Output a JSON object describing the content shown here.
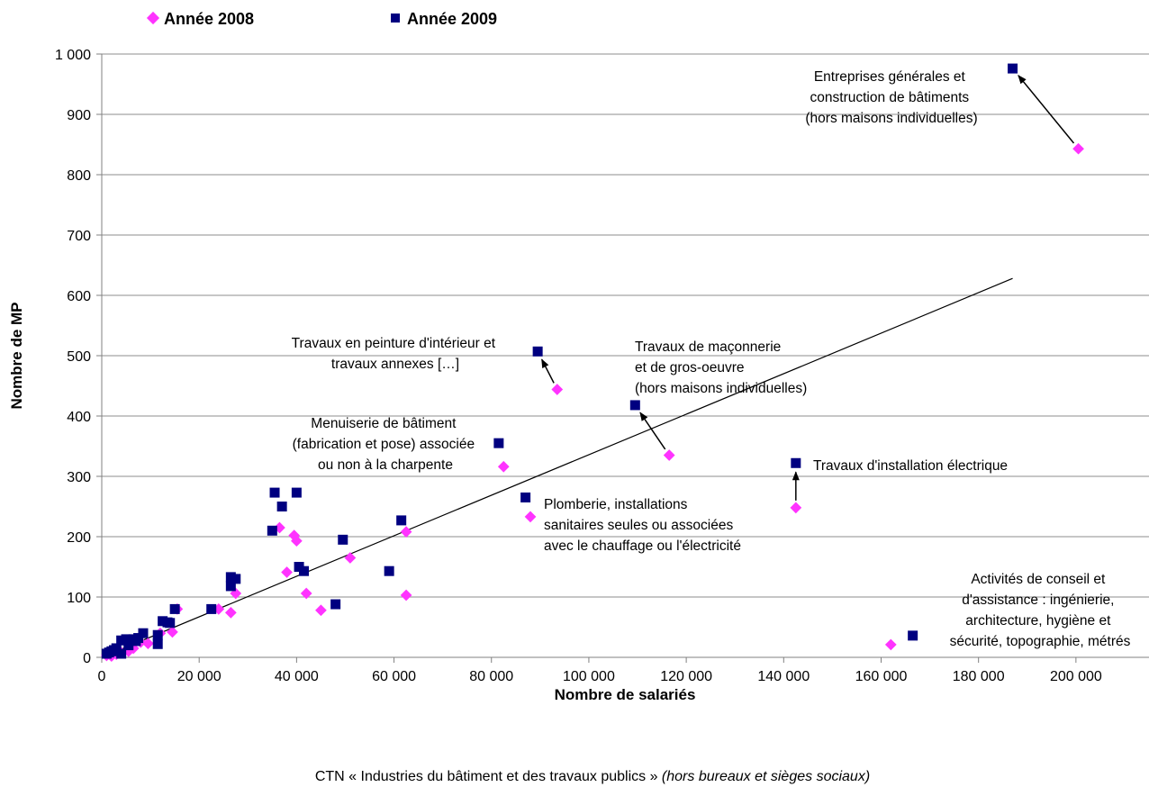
{
  "chart_data": {
    "type": "scatter",
    "title": "",
    "xlabel": "Nombre de salariés",
    "ylabel": "Nombre de MP",
    "xlim": [
      0,
      215000
    ],
    "ylim": [
      0,
      1000
    ],
    "x_ticks": [
      0,
      20000,
      40000,
      60000,
      80000,
      100000,
      120000,
      140000,
      160000,
      180000,
      200000
    ],
    "y_ticks": [
      0,
      100,
      200,
      300,
      400,
      500,
      600,
      700,
      800,
      900,
      1000
    ],
    "grid": "horizontal",
    "legend_position": "top-left",
    "series": [
      {
        "name": "Année 2008",
        "marker": "diamond",
        "color": "#FF33FF",
        "points": [
          [
            200500,
            843
          ],
          [
            93500,
            444
          ],
          [
            116500,
            335
          ],
          [
            142500,
            248
          ],
          [
            82500,
            316
          ],
          [
            88000,
            233
          ],
          [
            162000,
            21
          ],
          [
            36500,
            215
          ],
          [
            39500,
            202
          ],
          [
            40000,
            193
          ],
          [
            38000,
            141
          ],
          [
            42000,
            106
          ],
          [
            45000,
            78
          ],
          [
            51000,
            165
          ],
          [
            62500,
            208
          ],
          [
            62500,
            103
          ],
          [
            27500,
            106
          ],
          [
            26500,
            74
          ],
          [
            24000,
            80
          ],
          [
            15500,
            80
          ],
          [
            14500,
            42
          ],
          [
            12000,
            40
          ],
          [
            9500,
            23
          ],
          [
            8000,
            25
          ],
          [
            5500,
            10
          ],
          [
            4000,
            8
          ],
          [
            3000,
            5
          ],
          [
            2000,
            2
          ],
          [
            1000,
            3
          ],
          [
            6500,
            15
          ]
        ]
      },
      {
        "name": "Année 2009",
        "marker": "square",
        "color": "#000080",
        "points": [
          [
            187000,
            976
          ],
          [
            89500,
            507
          ],
          [
            109500,
            418
          ],
          [
            142500,
            322
          ],
          [
            81500,
            355
          ],
          [
            87000,
            265
          ],
          [
            166500,
            36
          ],
          [
            35500,
            273
          ],
          [
            40000,
            273
          ],
          [
            37000,
            250
          ],
          [
            35000,
            210
          ],
          [
            49500,
            195
          ],
          [
            61500,
            227
          ],
          [
            40500,
            150
          ],
          [
            41500,
            143
          ],
          [
            48000,
            88
          ],
          [
            59000,
            143
          ],
          [
            26500,
            133
          ],
          [
            27500,
            130
          ],
          [
            26500,
            118
          ],
          [
            22500,
            80
          ],
          [
            15000,
            80
          ],
          [
            13500,
            58
          ],
          [
            12500,
            60
          ],
          [
            14000,
            57
          ],
          [
            11500,
            37
          ],
          [
            11500,
            22
          ],
          [
            8500,
            40
          ],
          [
            7500,
            32
          ],
          [
            6500,
            30
          ],
          [
            5000,
            30
          ],
          [
            4000,
            28
          ],
          [
            3000,
            15
          ],
          [
            2500,
            12
          ],
          [
            2000,
            10
          ],
          [
            1500,
            8
          ],
          [
            1000,
            6
          ],
          [
            4000,
            6
          ],
          [
            7000,
            27
          ],
          [
            5500,
            20
          ]
        ]
      }
    ],
    "trendline": {
      "from": [
        0,
        0
      ],
      "to": [
        187000,
        628
      ]
    },
    "annotations": [
      {
        "lines": [
          "Entreprises générales et",
          "construction de bâtiments",
          "(hors maisons individuelles)"
        ],
        "arrow_from": [
          200500,
          843
        ],
        "arrow_to": [
          187000,
          976
        ]
      },
      {
        "lines": [
          "Travaux en peinture d'intérieur et",
          "travaux annexes […]"
        ],
        "arrow_from": [
          93500,
          444
        ],
        "arrow_to": [
          89500,
          507
        ]
      },
      {
        "lines": [
          "Travaux de maçonnerie",
          "et de gros-oeuvre",
          "(hors maisons individuelles)"
        ],
        "arrow_from": [
          116500,
          335
        ],
        "arrow_to": [
          109500,
          418
        ]
      },
      {
        "lines": [
          "Menuiserie de bâtiment",
          "(fabrication et pose) associée",
          "ou non à la charpente"
        ],
        "arrow_from": null,
        "arrow_to": null
      },
      {
        "lines": [
          "Travaux d'installation électrique"
        ],
        "arrow_from": [
          142500,
          248
        ],
        "arrow_to": [
          142500,
          322
        ]
      },
      {
        "lines": [
          "Plomberie, installations",
          "sanitaires seules ou associées",
          "avec le chauffage ou l'électricité"
        ],
        "arrow_from": null,
        "arrow_to": null
      },
      {
        "lines": [
          "Activités de conseil et",
          "d'assistance : ingénierie,",
          "architecture, hygiène et",
          "sécurité, topographie, métrés"
        ],
        "arrow_from": null,
        "arrow_to": null
      }
    ]
  },
  "caption": {
    "normal": "CTN « Industries du bâtiment et des travaux publics »",
    "italic": "(hors bureaux et sièges sociaux)"
  }
}
